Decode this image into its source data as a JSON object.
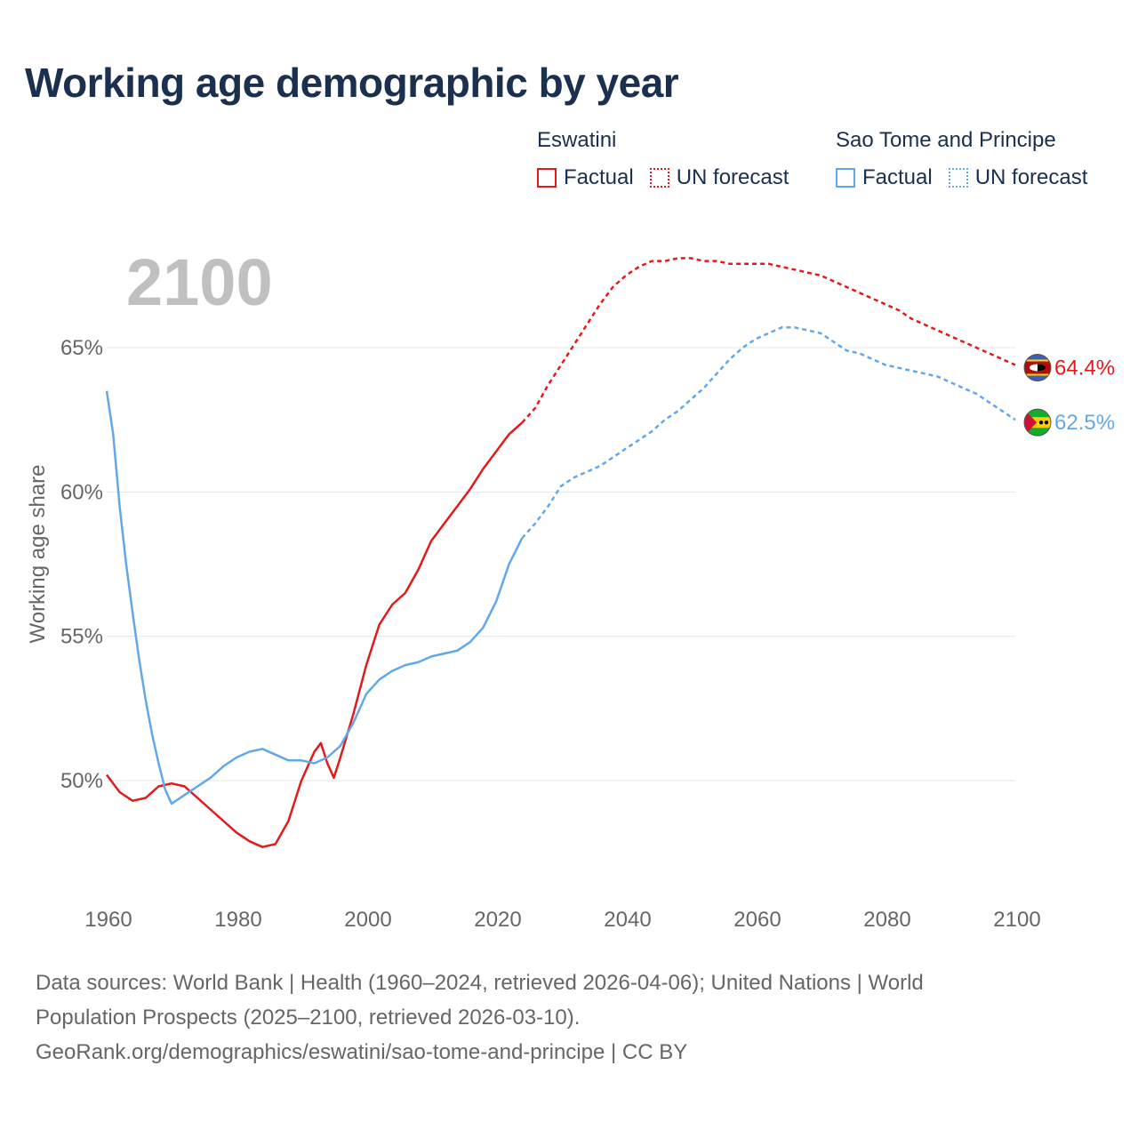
{
  "title": "Working age demographic by year",
  "legend": {
    "groups": [
      {
        "country": "Eswatini",
        "factual_label": "Factual",
        "forecast_label": "UN forecast",
        "color": "#e31a1c"
      },
      {
        "country": "Sao Tome and Principe",
        "factual_label": "Factual",
        "forecast_label": "UN forecast",
        "color": "#62a8e8"
      }
    ]
  },
  "footer": {
    "line1": "Data sources: World Bank | Health (1960–2024, retrieved 2026-04-06); United Nations | World",
    "line2": "Population Prospects (2025–2100, retrieved 2026-03-10).",
    "line3": "GeoRank.org/demographics/eswatini/sao-tome-and-principe | CC BY"
  },
  "chart_data": {
    "type": "line",
    "title": "Working age demographic by year",
    "ylabel": "Working age share",
    "xlabel": "",
    "year_display": "2100",
    "xlim": [
      1960,
      2100
    ],
    "ylim": [
      46,
      68
    ],
    "x_ticks": [
      1960,
      1980,
      2000,
      2020,
      2040,
      2060,
      2080,
      2100
    ],
    "y_ticks": [
      50,
      55,
      60,
      65
    ],
    "y_tick_labels": [
      "50%",
      "55%",
      "60%",
      "65%"
    ],
    "grid": true,
    "legend_position": "top-right",
    "factual_end_year": 2024,
    "series": [
      {
        "name": "Eswatini",
        "color": "#e31a1c",
        "end_label": "64.4%",
        "flag": "eswatini-flag",
        "points": [
          [
            1960,
            50.2
          ],
          [
            1962,
            49.6
          ],
          [
            1964,
            49.3
          ],
          [
            1966,
            49.4
          ],
          [
            1968,
            49.8
          ],
          [
            1970,
            49.9
          ],
          [
            1972,
            49.8
          ],
          [
            1974,
            49.4
          ],
          [
            1976,
            49.0
          ],
          [
            1978,
            48.6
          ],
          [
            1980,
            48.2
          ],
          [
            1982,
            47.9
          ],
          [
            1984,
            47.7
          ],
          [
            1986,
            47.8
          ],
          [
            1988,
            48.6
          ],
          [
            1990,
            50.0
          ],
          [
            1992,
            51.0
          ],
          [
            1993,
            51.3
          ],
          [
            1994,
            50.6
          ],
          [
            1995,
            50.1
          ],
          [
            1996,
            50.8
          ],
          [
            1998,
            52.3
          ],
          [
            2000,
            54.0
          ],
          [
            2002,
            55.4
          ],
          [
            2004,
            56.1
          ],
          [
            2006,
            56.5
          ],
          [
            2008,
            57.3
          ],
          [
            2010,
            58.3
          ],
          [
            2012,
            58.9
          ],
          [
            2014,
            59.5
          ],
          [
            2016,
            60.1
          ],
          [
            2018,
            60.8
          ],
          [
            2020,
            61.4
          ],
          [
            2022,
            62.0
          ],
          [
            2024,
            62.4
          ],
          [
            2026,
            62.9
          ],
          [
            2028,
            63.7
          ],
          [
            2030,
            64.4
          ],
          [
            2032,
            65.1
          ],
          [
            2034,
            65.8
          ],
          [
            2036,
            66.5
          ],
          [
            2038,
            67.1
          ],
          [
            2040,
            67.5
          ],
          [
            2042,
            67.8
          ],
          [
            2044,
            68.0
          ],
          [
            2046,
            68.0
          ],
          [
            2048,
            68.1
          ],
          [
            2050,
            68.1
          ],
          [
            2052,
            68.0
          ],
          [
            2054,
            68.0
          ],
          [
            2056,
            67.9
          ],
          [
            2058,
            67.9
          ],
          [
            2060,
            67.9
          ],
          [
            2062,
            67.9
          ],
          [
            2064,
            67.8
          ],
          [
            2066,
            67.7
          ],
          [
            2068,
            67.6
          ],
          [
            2070,
            67.5
          ],
          [
            2072,
            67.3
          ],
          [
            2074,
            67.1
          ],
          [
            2076,
            66.9
          ],
          [
            2078,
            66.7
          ],
          [
            2080,
            66.5
          ],
          [
            2082,
            66.3
          ],
          [
            2084,
            66.0
          ],
          [
            2086,
            65.8
          ],
          [
            2088,
            65.6
          ],
          [
            2090,
            65.4
          ],
          [
            2092,
            65.2
          ],
          [
            2094,
            65.0
          ],
          [
            2096,
            64.8
          ],
          [
            2098,
            64.6
          ],
          [
            2100,
            64.4
          ]
        ]
      },
      {
        "name": "Sao Tome and Principe",
        "color": "#62a8e8",
        "end_label": "62.5%",
        "flag": "sao-tome-flag",
        "points": [
          [
            1960,
            63.5
          ],
          [
            1961,
            62.0
          ],
          [
            1962,
            59.5
          ],
          [
            1963,
            57.5
          ],
          [
            1964,
            55.8
          ],
          [
            1965,
            54.2
          ],
          [
            1966,
            52.8
          ],
          [
            1967,
            51.6
          ],
          [
            1968,
            50.6
          ],
          [
            1969,
            49.7
          ],
          [
            1970,
            49.2
          ],
          [
            1972,
            49.5
          ],
          [
            1974,
            49.8
          ],
          [
            1976,
            50.1
          ],
          [
            1978,
            50.5
          ],
          [
            1980,
            50.8
          ],
          [
            1982,
            51.0
          ],
          [
            1984,
            51.1
          ],
          [
            1986,
            50.9
          ],
          [
            1988,
            50.7
          ],
          [
            1990,
            50.7
          ],
          [
            1992,
            50.6
          ],
          [
            1994,
            50.8
          ],
          [
            1996,
            51.2
          ],
          [
            1998,
            52.0
          ],
          [
            2000,
            53.0
          ],
          [
            2002,
            53.5
          ],
          [
            2004,
            53.8
          ],
          [
            2006,
            54.0
          ],
          [
            2008,
            54.1
          ],
          [
            2010,
            54.3
          ],
          [
            2012,
            54.4
          ],
          [
            2014,
            54.5
          ],
          [
            2016,
            54.8
          ],
          [
            2018,
            55.3
          ],
          [
            2020,
            56.2
          ],
          [
            2022,
            57.5
          ],
          [
            2024,
            58.4
          ],
          [
            2026,
            58.9
          ],
          [
            2028,
            59.5
          ],
          [
            2030,
            60.2
          ],
          [
            2032,
            60.5
          ],
          [
            2034,
            60.7
          ],
          [
            2036,
            60.9
          ],
          [
            2038,
            61.2
          ],
          [
            2040,
            61.5
          ],
          [
            2042,
            61.8
          ],
          [
            2044,
            62.1
          ],
          [
            2046,
            62.5
          ],
          [
            2048,
            62.8
          ],
          [
            2050,
            63.2
          ],
          [
            2052,
            63.6
          ],
          [
            2054,
            64.1
          ],
          [
            2056,
            64.6
          ],
          [
            2058,
            65.0
          ],
          [
            2060,
            65.3
          ],
          [
            2062,
            65.5
          ],
          [
            2064,
            65.7
          ],
          [
            2066,
            65.7
          ],
          [
            2068,
            65.6
          ],
          [
            2070,
            65.5
          ],
          [
            2072,
            65.2
          ],
          [
            2074,
            64.9
          ],
          [
            2076,
            64.8
          ],
          [
            2078,
            64.6
          ],
          [
            2080,
            64.4
          ],
          [
            2082,
            64.3
          ],
          [
            2084,
            64.2
          ],
          [
            2086,
            64.1
          ],
          [
            2088,
            64.0
          ],
          [
            2090,
            63.8
          ],
          [
            2092,
            63.6
          ],
          [
            2094,
            63.4
          ],
          [
            2096,
            63.1
          ],
          [
            2098,
            62.8
          ],
          [
            2100,
            62.5
          ]
        ]
      }
    ]
  }
}
